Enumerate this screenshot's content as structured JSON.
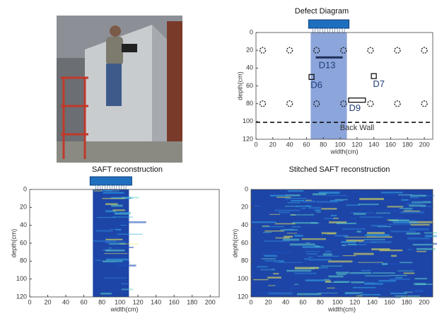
{
  "chart_data": [
    {
      "type": "defect-map",
      "title": "Defect Diagram",
      "x_label": "width(cm)",
      "y_label": "depth(cm)",
      "xlim": [
        0,
        210
      ],
      "ylim": [
        0,
        120
      ],
      "y_inverted": true,
      "xticks": [
        0,
        20,
        40,
        60,
        80,
        100,
        120,
        140,
        160,
        180,
        200
      ],
      "yticks": [
        0,
        20,
        40,
        60,
        80,
        100,
        120
      ],
      "transducer": [
        65,
        108
      ],
      "holes": {
        "x": [
          8,
          40,
          72,
          104,
          136,
          168,
          200
        ],
        "y": [
          20,
          80
        ]
      },
      "defects": [
        {
          "name": "D13",
          "shape": "line",
          "x": [
            71,
            103
          ],
          "y": 28
        },
        {
          "name": "D6",
          "shape": "square",
          "x": 66,
          "y": 50
        },
        {
          "name": "D7",
          "shape": "square",
          "x": 140,
          "y": 49
        },
        {
          "name": "D9",
          "shape": "box",
          "x": [
            110,
            130
          ],
          "y": 76
        }
      ],
      "back_wall": {
        "label": "Back Wall",
        "y": 101
      }
    },
    {
      "type": "heatmap",
      "title": "SAFT reconstruction",
      "x_label": "width(cm)",
      "y_label": "depth(cm)",
      "xlim": [
        0,
        210
      ],
      "ylim": [
        0,
        120
      ],
      "y_inverted": true,
      "xticks": [
        0,
        20,
        40,
        60,
        80,
        100,
        120,
        140,
        160,
        180,
        200
      ],
      "yticks": [
        0,
        20,
        40,
        60,
        80,
        100,
        120
      ],
      "aperture": [
        70,
        110
      ]
    },
    {
      "type": "heatmap",
      "title": "Stitched SAFT reconstruction",
      "x_label": "width(cm)",
      "y_label": "depth(cm)",
      "xlim": [
        0,
        210
      ],
      "ylim": [
        0,
        120
      ],
      "y_inverted": true,
      "xticks": [
        0,
        20,
        40,
        60,
        80,
        100,
        120,
        140,
        160,
        180,
        200
      ],
      "yticks": [
        0,
        20,
        40,
        60,
        80,
        100,
        120
      ],
      "aperture": [
        0,
        210
      ]
    }
  ]
}
